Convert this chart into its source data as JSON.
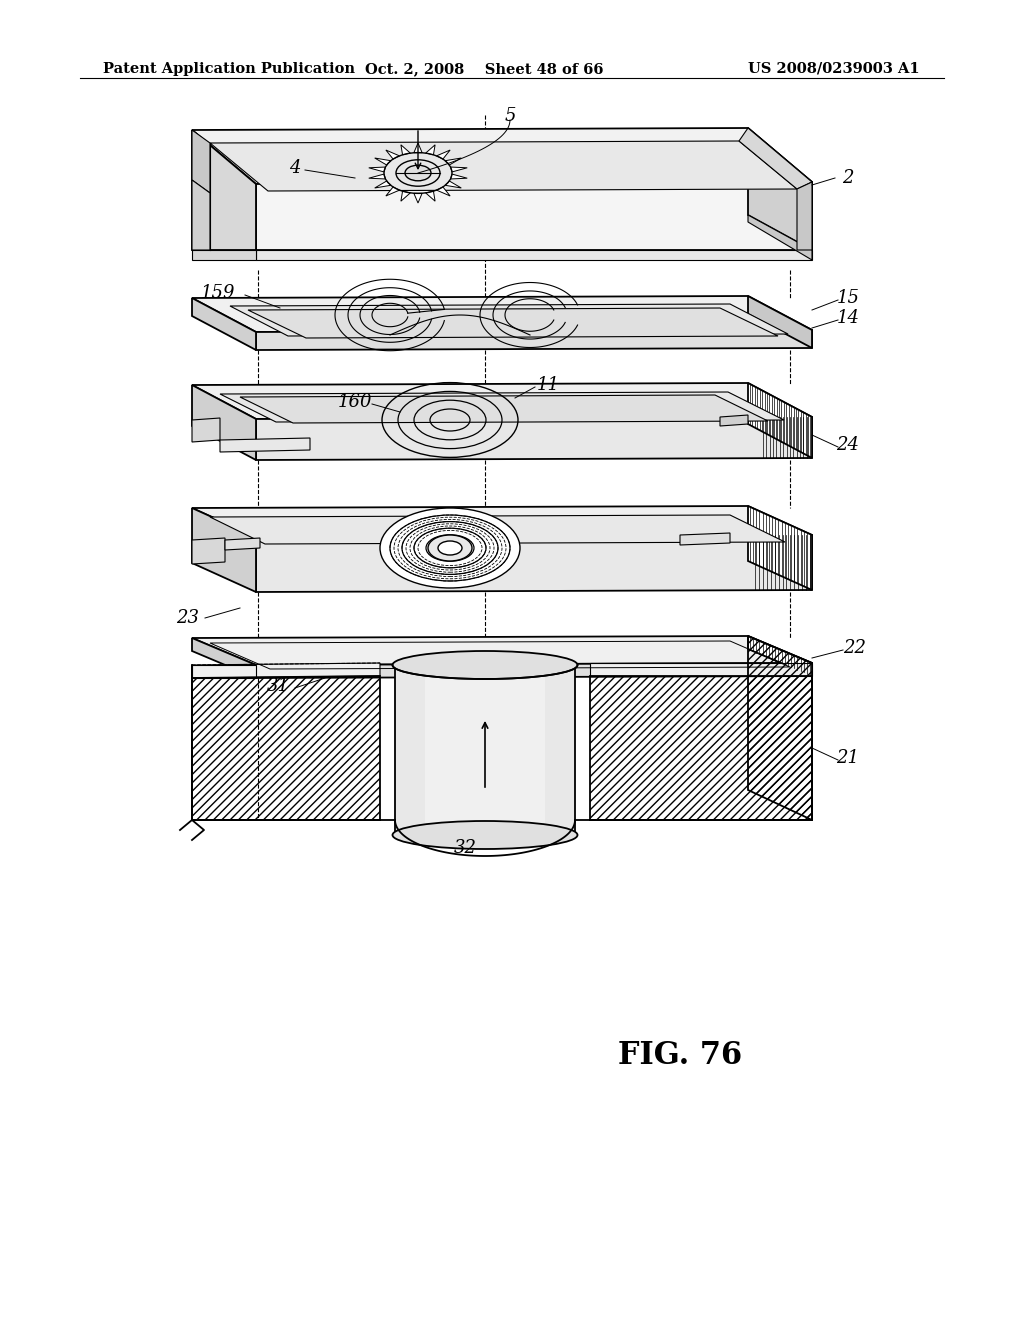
{
  "header_left": "Patent Application Publication",
  "header_center": "Oct. 2, 2008    Sheet 48 of 66",
  "header_right": "US 2008/0239003 A1",
  "fig_label": "FIG. 76",
  "bg_color": "#ffffff"
}
